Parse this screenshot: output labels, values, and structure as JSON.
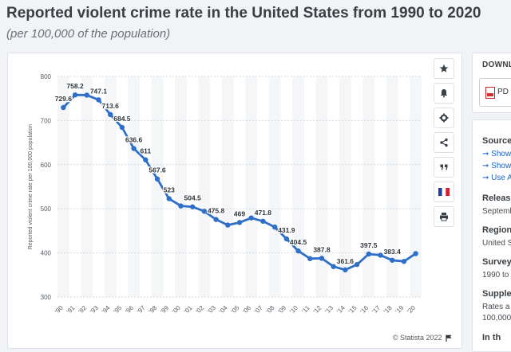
{
  "title": "Reported violent crime rate in the United States from 1990 to 2020",
  "subtitle": "(per 100,000 of the population)",
  "toolbar": {
    "icons": [
      "star-icon",
      "bell-icon",
      "gear-icon",
      "share-icon",
      "quote-icon",
      "flag-icon",
      "print-icon"
    ]
  },
  "credit": "© Statista 2022",
  "side": {
    "download_title": "DOWNL",
    "pdf_label": "PD",
    "source_head": "Source",
    "source_links": [
      "Show",
      "Show",
      "Use A"
    ],
    "release_head": "Releas",
    "release_val": "Septemb",
    "region_head": "Region",
    "region_val": "United S",
    "survey_head": "Survey",
    "survey_val": "1990 to",
    "supple_head": "Supple",
    "supple_val1": "Rates a",
    "supple_val2": "100,000",
    "last_head": "In th"
  },
  "chart_data": {
    "type": "line",
    "ylabel": "Reported violent crime rate per 100,000 population",
    "xlabel": "",
    "ylim": [
      300,
      800
    ],
    "yticks": [
      300,
      400,
      500,
      600,
      700,
      800
    ],
    "grid": true,
    "categories": [
      "'90",
      "'91",
      "'92",
      "'93",
      "'94",
      "'95",
      "'96",
      "'97",
      "'98",
      "'99",
      "'00",
      "'01",
      "'02",
      "'03",
      "'04",
      "'05",
      "'06",
      "'07",
      "'08",
      "'09",
      "'10",
      "'11",
      "'12",
      "'13",
      "'14",
      "'15",
      "'16",
      "'17",
      "'18",
      "'19",
      "'20"
    ],
    "values": [
      729.6,
      758.2,
      757.7,
      747.1,
      713.6,
      684.5,
      636.6,
      611,
      567.6,
      523,
      506.5,
      504.5,
      494.4,
      475.8,
      463.2,
      469,
      479.3,
      471.8,
      458.6,
      431.9,
      404.5,
      387.1,
      387.8,
      369.1,
      361.6,
      373.7,
      397.5,
      394.9,
      383.4,
      380.8,
      398.5
    ],
    "labels": [
      "729.6",
      "758.2",
      "",
      "747.1",
      "713.6",
      "684.5",
      "636.6",
      "611",
      "567.6",
      "523",
      "",
      "504.5",
      "",
      "475.8",
      "",
      "469",
      "",
      "471.8",
      "",
      "431.9",
      "404.5",
      "",
      "387.8",
      "",
      "361.6",
      "",
      "397.5",
      "",
      "383.4",
      "",
      ""
    ],
    "line_color": "#2e6fc9"
  }
}
